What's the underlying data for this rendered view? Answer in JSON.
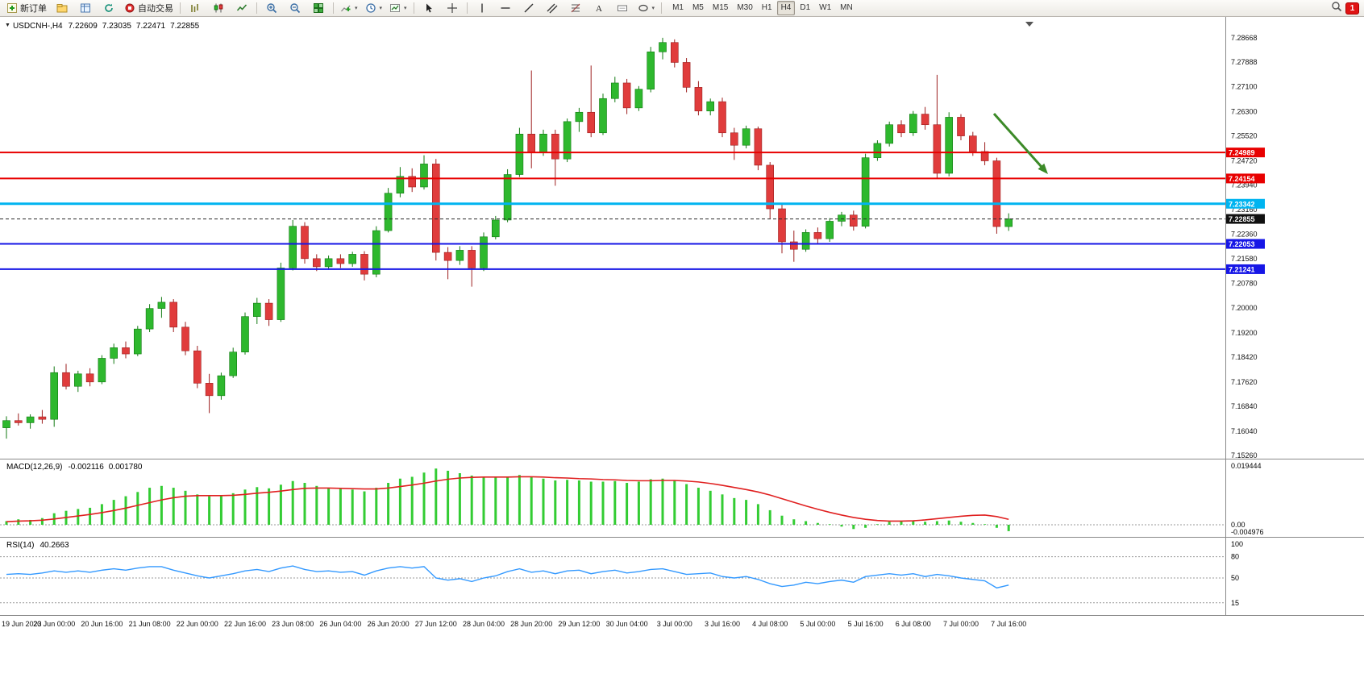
{
  "app": {
    "notification_count": "1"
  },
  "toolbar": {
    "new_order_label": "新订单",
    "autotrade_label": "自动交易",
    "timeframes": [
      "M1",
      "M5",
      "M15",
      "M30",
      "H1",
      "H4",
      "D1",
      "W1",
      "MN"
    ],
    "active_timeframe": "H4"
  },
  "chart_header": {
    "symbol_period": "USDCNH-,H4",
    "open": "7.22609",
    "high": "7.23035",
    "low": "7.22471",
    "close": "7.22855"
  },
  "chart_data": {
    "type": "candlestick",
    "symbol": "USDCNH-",
    "timeframe": "H4",
    "colors": {
      "up": "#2eb82e",
      "down": "#e03c3c",
      "background": "#ffffff"
    },
    "price_axis_ticks": [
      "7.28668",
      "7.27888",
      "7.27100",
      "7.26300",
      "7.25520",
      "7.24720",
      "7.23940",
      "7.23160",
      "7.22360",
      "7.21580",
      "7.20780",
      "7.20000",
      "7.19200",
      "7.18420",
      "7.17620",
      "7.16840",
      "7.16040",
      "7.15260"
    ],
    "hlines": [
      {
        "price": 7.24989,
        "label": "7.24989",
        "color": "#e80000",
        "width": 2
      },
      {
        "price": 7.24154,
        "label": "7.24154",
        "color": "#e80000",
        "width": 2
      },
      {
        "price": 7.23342,
        "label": "7.23342",
        "color": "#00b4f0",
        "width": 3
      },
      {
        "price": 7.22053,
        "label": "7.22053",
        "color": "#1616e6",
        "width": 2
      },
      {
        "price": 7.21241,
        "label": "7.21241",
        "color": "#1616e6",
        "width": 2
      }
    ],
    "current_price": {
      "price": 7.22855,
      "label": "7.22855",
      "color": "#2b2b2b"
    },
    "annotation_arrow": {
      "color": "#3c8a28",
      "direction": "down-right"
    },
    "time_labels": [
      "19 Jun 2023",
      "20 Jun 00:00",
      "20 Jun 16:00",
      "21 Jun 08:00",
      "22 Jun 00:00",
      "22 Jun 16:00",
      "23 Jun 08:00",
      "26 Jun 04:00",
      "26 Jun 20:00",
      "27 Jun 12:00",
      "28 Jun 04:00",
      "28 Jun 20:00",
      "29 Jun 12:00",
      "30 Jun 04:00",
      "3 Jul 00:00",
      "3 Jul 16:00",
      "4 Jul 08:00",
      "5 Jul 00:00",
      "5 Jul 16:00",
      "6 Jul 08:00",
      "7 Jul 00:00",
      "7 Jul 16:00"
    ],
    "label_every_n_candles": 4,
    "candles": [
      [
        7.1615,
        7.1652,
        7.158,
        7.1638
      ],
      [
        7.1638,
        7.1661,
        7.1622,
        7.1631
      ],
      [
        7.1631,
        7.1658,
        7.1612,
        7.165
      ],
      [
        7.165,
        7.1672,
        7.1628,
        7.1642
      ],
      [
        7.1642,
        7.1812,
        7.1618,
        7.1792
      ],
      [
        7.1792,
        7.182,
        7.1738,
        7.1748
      ],
      [
        7.1748,
        7.1798,
        7.173,
        7.1788
      ],
      [
        7.1788,
        7.1806,
        7.1748,
        7.1762
      ],
      [
        7.1762,
        7.1848,
        7.1755,
        7.1838
      ],
      [
        7.1838,
        7.1885,
        7.182,
        7.1872
      ],
      [
        7.1872,
        7.1892,
        7.1838,
        7.1852
      ],
      [
        7.1852,
        7.1942,
        7.1845,
        7.1932
      ],
      [
        7.1932,
        7.2012,
        7.1922,
        7.1998
      ],
      [
        7.1998,
        7.2035,
        7.1968,
        7.2018
      ],
      [
        7.2018,
        7.2028,
        7.1922,
        7.1938
      ],
      [
        7.1938,
        7.1955,
        7.1848,
        7.1862
      ],
      [
        7.1862,
        7.1878,
        7.1742,
        7.1758
      ],
      [
        7.1758,
        7.1788,
        7.1662,
        7.1718
      ],
      [
        7.1718,
        7.1792,
        7.1705,
        7.1782
      ],
      [
        7.1782,
        7.1872,
        7.1775,
        7.1858
      ],
      [
        7.1858,
        7.1985,
        7.185,
        7.1972
      ],
      [
        7.1972,
        7.2032,
        7.1948,
        7.2015
      ],
      [
        7.2015,
        7.2028,
        7.1942,
        7.1962
      ],
      [
        7.1962,
        7.2145,
        7.1955,
        7.2128
      ],
      [
        7.2128,
        7.2282,
        7.212,
        7.2262
      ],
      [
        7.2262,
        7.2275,
        7.2142,
        7.2158
      ],
      [
        7.2158,
        7.2172,
        7.2118,
        7.2132
      ],
      [
        7.2132,
        7.2168,
        7.2122,
        7.2158
      ],
      [
        7.2158,
        7.2172,
        7.2128,
        7.2142
      ],
      [
        7.2142,
        7.218,
        7.2132,
        7.2172
      ],
      [
        7.2172,
        7.2182,
        7.2088,
        7.2108
      ],
      [
        7.2108,
        7.2262,
        7.2098,
        7.2248
      ],
      [
        7.2248,
        7.2385,
        7.2242,
        7.2368
      ],
      [
        7.2368,
        7.2452,
        7.2355,
        7.2422
      ],
      [
        7.2422,
        7.2448,
        7.2372,
        7.2388
      ],
      [
        7.2388,
        7.249,
        7.238,
        7.2462
      ],
      [
        7.2462,
        7.2478,
        7.2152,
        7.2178
      ],
      [
        7.2178,
        7.2195,
        7.2092,
        7.2152
      ],
      [
        7.2152,
        7.2198,
        7.2138,
        7.2185
      ],
      [
        7.2185,
        7.2198,
        7.2068,
        7.2128
      ],
      [
        7.2128,
        7.2242,
        7.2118,
        7.2228
      ],
      [
        7.2228,
        7.2295,
        7.222,
        7.2282
      ],
      [
        7.2282,
        7.2445,
        7.2275,
        7.2428
      ],
      [
        7.2428,
        7.2578,
        7.242,
        7.2558
      ],
      [
        7.2558,
        7.2762,
        7.2448,
        7.2498
      ],
      [
        7.2498,
        7.2572,
        7.2488,
        7.2558
      ],
      [
        7.2558,
        7.2572,
        7.2392,
        7.2478
      ],
      [
        7.2478,
        7.2608,
        7.2468,
        7.2598
      ],
      [
        7.2598,
        7.2642,
        7.2565,
        7.2628
      ],
      [
        7.2628,
        7.2778,
        7.2548,
        7.2562
      ],
      [
        7.2562,
        7.2688,
        7.2555,
        7.2672
      ],
      [
        7.2672,
        7.2742,
        7.266,
        7.2722
      ],
      [
        7.2722,
        7.2735,
        7.2622,
        7.2642
      ],
      [
        7.2642,
        7.2712,
        7.2632,
        7.2702
      ],
      [
        7.2702,
        7.2838,
        7.2692,
        7.2822
      ],
      [
        7.2822,
        7.2867,
        7.2798,
        7.2852
      ],
      [
        7.2852,
        7.2862,
        7.2772,
        7.2788
      ],
      [
        7.2788,
        7.2802,
        7.2692,
        7.2708
      ],
      [
        7.2708,
        7.2728,
        7.2618,
        7.2632
      ],
      [
        7.2632,
        7.2672,
        7.2618,
        7.2662
      ],
      [
        7.2662,
        7.2675,
        7.2548,
        7.2562
      ],
      [
        7.2562,
        7.2578,
        7.2475,
        7.2522
      ],
      [
        7.2522,
        7.2585,
        7.2512,
        7.2575
      ],
      [
        7.2575,
        7.2582,
        7.2442,
        7.2458
      ],
      [
        7.2458,
        7.2468,
        7.2285,
        7.2318
      ],
      [
        7.2318,
        7.2332,
        7.2175,
        7.2212
      ],
      [
        7.2212,
        7.2248,
        7.2148,
        7.2188
      ],
      [
        7.2188,
        7.2252,
        7.218,
        7.2242
      ],
      [
        7.2242,
        7.2258,
        7.2205,
        7.2222
      ],
      [
        7.2222,
        7.2288,
        7.2212,
        7.2278
      ],
      [
        7.2278,
        7.2308,
        7.2262,
        7.2298
      ],
      [
        7.2298,
        7.2312,
        7.2248,
        7.2262
      ],
      [
        7.2262,
        7.2495,
        7.2255,
        7.2482
      ],
      [
        7.2482,
        7.2538,
        7.2472,
        7.2528
      ],
      [
        7.2528,
        7.2598,
        7.2518,
        7.2588
      ],
      [
        7.2588,
        7.2602,
        7.2548,
        7.2562
      ],
      [
        7.2562,
        7.2632,
        7.2552,
        7.2622
      ],
      [
        7.2622,
        7.2645,
        7.2572,
        7.2588
      ],
      [
        7.2588,
        7.2748,
        7.2415,
        7.2432
      ],
      [
        7.2432,
        7.2628,
        7.2422,
        7.2612
      ],
      [
        7.2612,
        7.2622,
        7.2538,
        7.2552
      ],
      [
        7.2552,
        7.2565,
        7.2488,
        7.2502
      ],
      [
        7.2502,
        7.2532,
        7.2458,
        7.2472
      ],
      [
        7.2472,
        7.2482,
        7.2238,
        7.2261
      ],
      [
        7.22609,
        7.23035,
        7.22471,
        7.22855
      ]
    ],
    "macd": {
      "title": "MACD(12,26,9)",
      "main_value": "-0.002116",
      "signal_value": "0.001780",
      "axis_labels": [
        "0.019444",
        "0.00",
        "-0.004976"
      ],
      "histogram_color": "#33cc33",
      "signal_color": "#e02020",
      "histogram": [
        0.0012,
        0.0018,
        0.0016,
        0.0022,
        0.0038,
        0.0046,
        0.0052,
        0.0056,
        0.0068,
        0.0082,
        0.0094,
        0.0108,
        0.0122,
        0.0128,
        0.0122,
        0.0112,
        0.01,
        0.0094,
        0.0096,
        0.0104,
        0.0116,
        0.0124,
        0.012,
        0.0132,
        0.0144,
        0.0138,
        0.0128,
        0.0122,
        0.0118,
        0.0116,
        0.011,
        0.0122,
        0.0138,
        0.0152,
        0.0158,
        0.0172,
        0.0185,
        0.0178,
        0.017,
        0.0162,
        0.0158,
        0.0156,
        0.0158,
        0.0164,
        0.0158,
        0.0152,
        0.0146,
        0.0148,
        0.0146,
        0.0142,
        0.0142,
        0.0144,
        0.0138,
        0.0142,
        0.015,
        0.0152,
        0.0146,
        0.0134,
        0.0122,
        0.0112,
        0.01,
        0.0088,
        0.0082,
        0.0068,
        0.0048,
        0.003,
        0.0018,
        0.0012,
        0.0006,
        0.0002,
        -0.0006,
        -0.0014,
        -0.001,
        0.0002,
        0.001,
        0.0012,
        0.0014,
        0.001,
        0.0012,
        0.0014,
        0.001,
        0.0006,
        0.0002,
        -0.001,
        -0.0021
      ],
      "signal": [
        0.001,
        0.0012,
        0.0013,
        0.0015,
        0.0019,
        0.0024,
        0.0029,
        0.0034,
        0.004,
        0.0047,
        0.0055,
        0.0064,
        0.0073,
        0.0082,
        0.0089,
        0.0094,
        0.0096,
        0.0096,
        0.0096,
        0.0097,
        0.01,
        0.0104,
        0.0107,
        0.0111,
        0.0116,
        0.012,
        0.0121,
        0.0121,
        0.012,
        0.0119,
        0.0118,
        0.0118,
        0.0121,
        0.0126,
        0.0131,
        0.0137,
        0.0144,
        0.015,
        0.0154,
        0.0156,
        0.0157,
        0.0157,
        0.0157,
        0.0158,
        0.0158,
        0.0157,
        0.0155,
        0.0154,
        0.0152,
        0.0151,
        0.0149,
        0.0148,
        0.0146,
        0.0145,
        0.0145,
        0.0146,
        0.0146,
        0.0144,
        0.0141,
        0.0136,
        0.013,
        0.0123,
        0.0116,
        0.0108,
        0.0098,
        0.0086,
        0.0074,
        0.0062,
        0.0051,
        0.0041,
        0.0032,
        0.0024,
        0.0018,
        0.0014,
        0.0012,
        0.0012,
        0.0013,
        0.0016,
        0.002,
        0.0024,
        0.0028,
        0.0031,
        0.0032,
        0.0027,
        0.0018
      ]
    },
    "rsi": {
      "title": "RSI(14)",
      "current_value": "40.2663",
      "axis_labels": [
        "100",
        "80",
        "50",
        "15"
      ],
      "levels": [
        80,
        50,
        15
      ],
      "line_color": "#3399ff",
      "values": [
        55,
        56,
        55,
        57,
        60,
        58,
        60,
        58,
        61,
        63,
        61,
        64,
        66,
        66,
        61,
        57,
        53,
        50,
        53,
        56,
        60,
        62,
        59,
        64,
        67,
        62,
        59,
        60,
        58,
        59,
        54,
        60,
        64,
        66,
        64,
        66,
        50,
        47,
        49,
        45,
        50,
        53,
        59,
        63,
        58,
        60,
        56,
        60,
        61,
        56,
        59,
        61,
        57,
        59,
        62,
        63,
        59,
        55,
        56,
        57,
        52,
        50,
        52,
        48,
        42,
        38,
        40,
        44,
        42,
        45,
        47,
        44,
        52,
        54,
        56,
        54,
        56,
        52,
        55,
        53,
        50,
        48,
        46,
        36,
        40
      ]
    }
  }
}
